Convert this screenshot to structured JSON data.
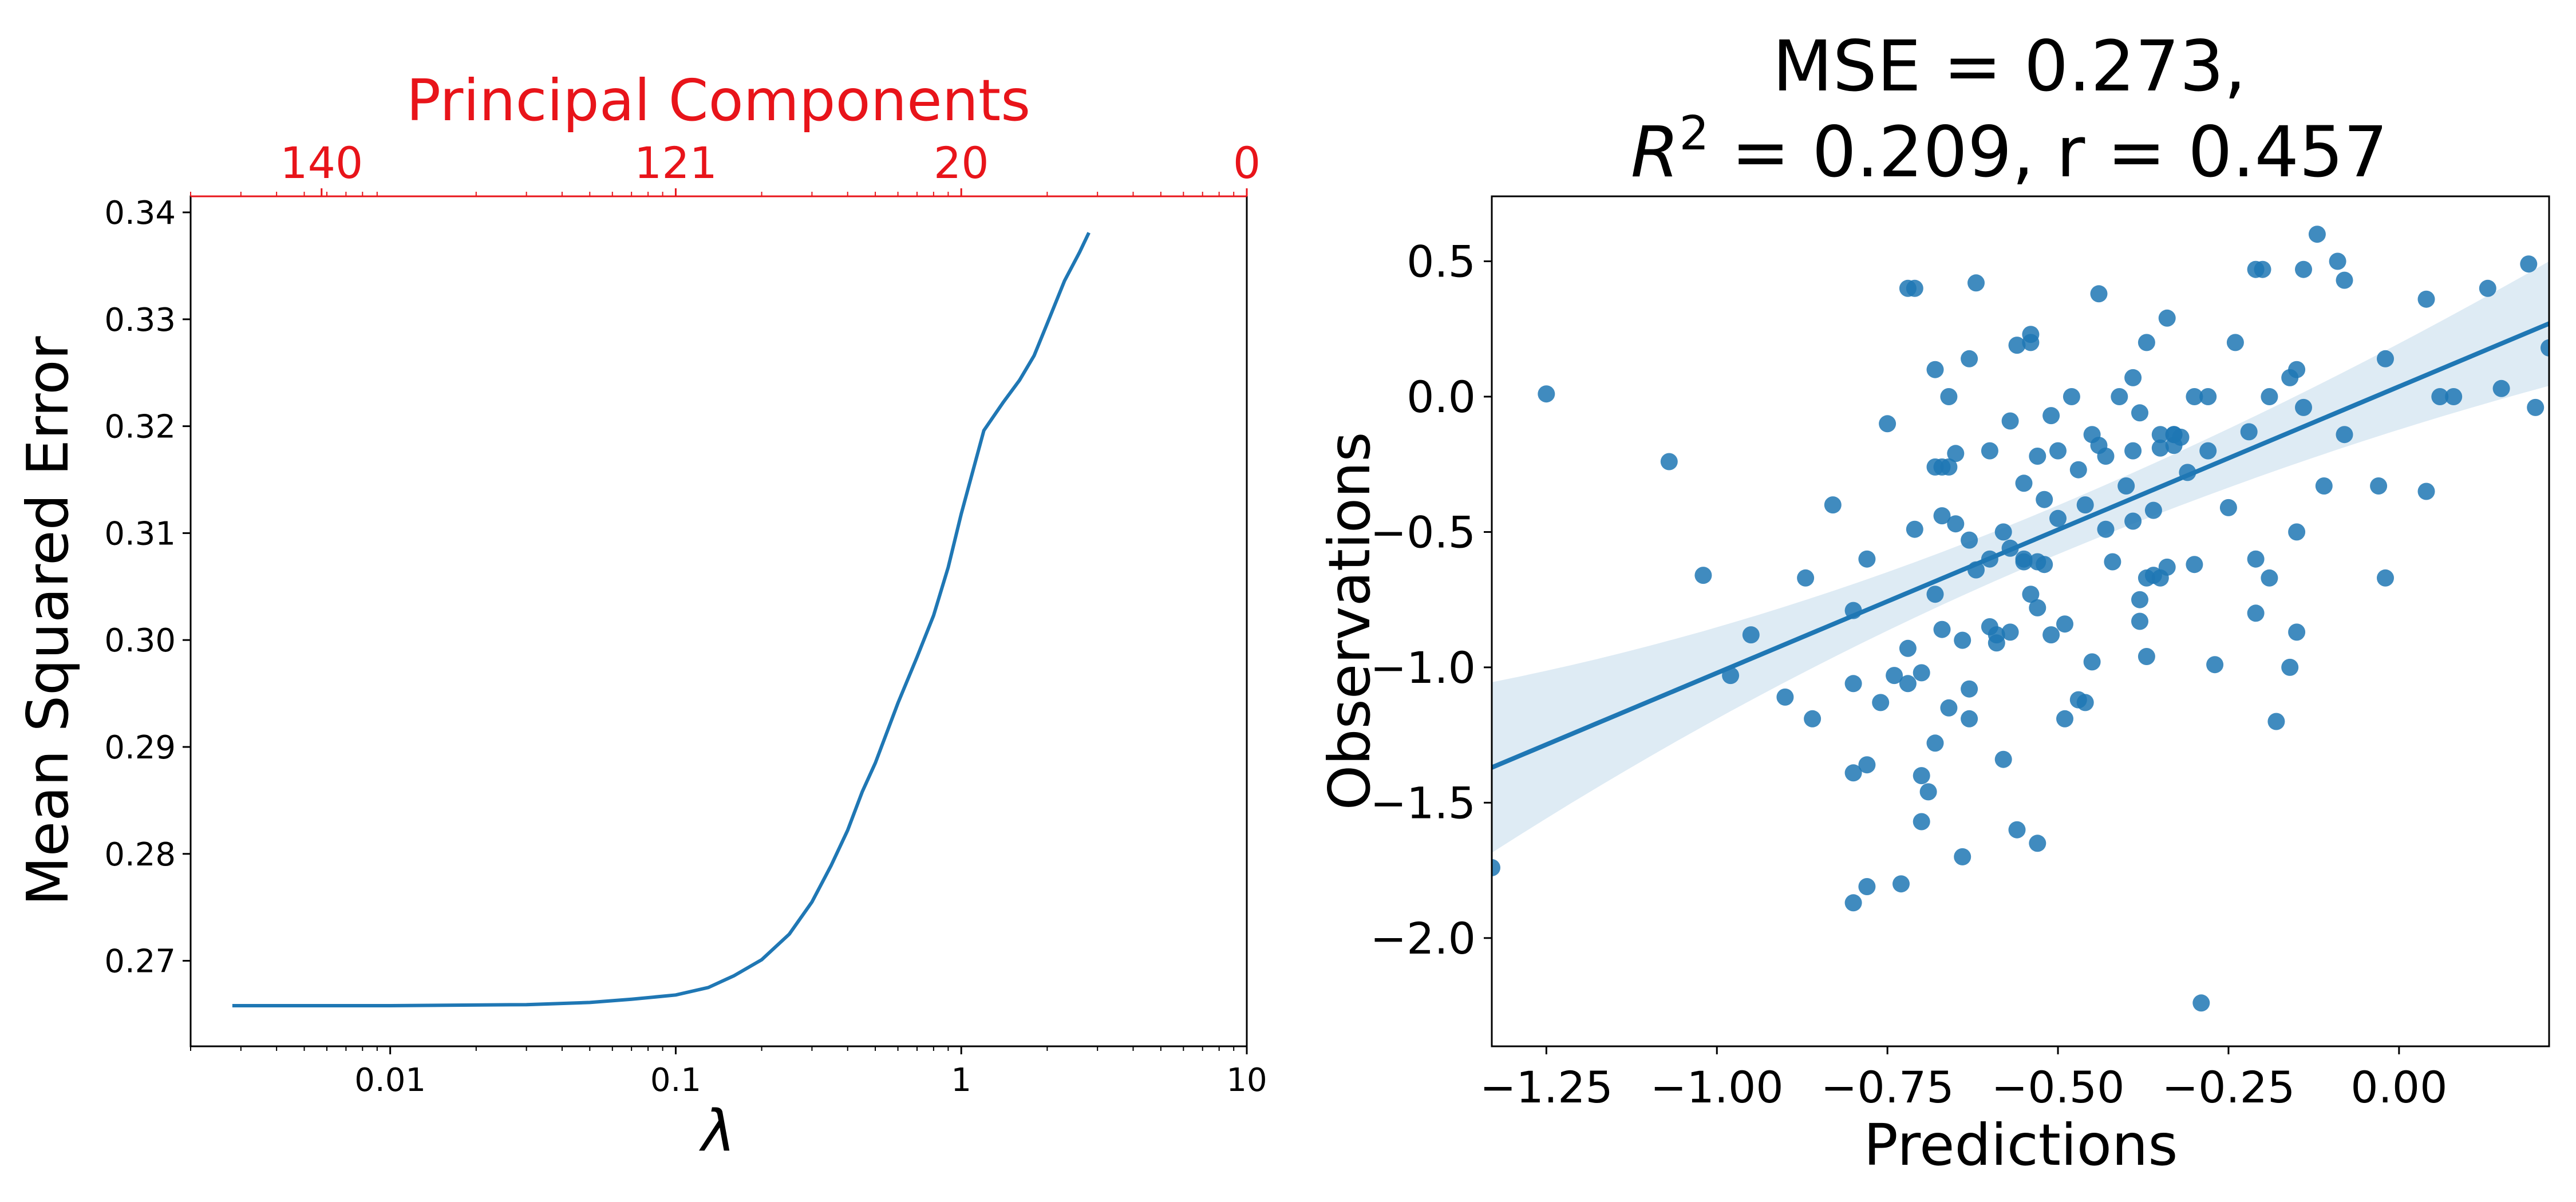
{
  "chart_data": [
    {
      "type": "line",
      "xlabel": "λ",
      "ylabel": "Mean Squared Error",
      "x_scale": "log",
      "xlim": [
        0.002,
        10
      ],
      "ylim": [
        0.262,
        0.3415
      ],
      "xticks": [
        0.01,
        0.1,
        1,
        10
      ],
      "xtick_labels": [
        "0.01",
        "0.1",
        "1",
        "10"
      ],
      "yticks": [
        0.27,
        0.28,
        0.29,
        0.3,
        0.31,
        0.32,
        0.33,
        0.34
      ],
      "ytick_labels": [
        "0.27",
        "0.28",
        "0.29",
        "0.30",
        "0.31",
        "0.32",
        "0.33",
        "0.34"
      ],
      "grid": false,
      "series": [
        {
          "color": "#1f77b4",
          "x": [
            0.0028,
            0.01,
            0.03,
            0.05,
            0.07,
            0.1,
            0.13,
            0.16,
            0.2,
            0.25,
            0.3,
            0.35,
            0.4,
            0.45,
            0.5,
            0.6,
            0.7,
            0.8,
            0.9,
            1.0,
            1.2,
            1.4,
            1.6,
            1.8,
            2.0,
            2.3,
            2.6,
            2.8
          ],
          "y": [
            0.2658,
            0.2658,
            0.2659,
            0.2661,
            0.2664,
            0.2668,
            0.2675,
            0.2686,
            0.2701,
            0.2725,
            0.2755,
            0.2789,
            0.2822,
            0.2858,
            0.2885,
            0.2941,
            0.2984,
            0.3023,
            0.3068,
            0.3118,
            0.3196,
            0.3222,
            0.3243,
            0.3266,
            0.3296,
            0.3336,
            0.3363,
            0.3381
          ]
        }
      ],
      "top_axis": {
        "label": "Principal Components",
        "color": "#e8141a",
        "ticks_at_lambda": [
          0.00575,
          0.1,
          1.0,
          10
        ],
        "tick_labels": [
          "140",
          "121",
          "20",
          "0"
        ]
      }
    },
    {
      "type": "scatter",
      "title_line1": "MSE = 0.273,",
      "title_line2_base": "R",
      "title_line2_sup": "2",
      "title_line2_rest": " = 0.209, r = 0.457",
      "xlabel": "Predictions",
      "ylabel": "Observations",
      "xlim": [
        -1.33,
        0.22
      ],
      "ylim": [
        -2.4,
        0.74
      ],
      "xticks": [
        -1.25,
        -1.0,
        -0.75,
        -0.5,
        -0.25,
        0.0
      ],
      "xtick_labels": [
        "−1.25",
        "−1.00",
        "−0.75",
        "−0.50",
        "−0.25",
        "0.00"
      ],
      "yticks": [
        -2.0,
        -1.5,
        -1.0,
        -0.5,
        0.0,
        0.5
      ],
      "ytick_labels": [
        "−2.0",
        "−1.5",
        "−1.0",
        "−0.5",
        "0.0",
        "0.5"
      ],
      "grid": false,
      "point_color": "#1f77b4",
      "regression": {
        "x": [
          -1.33,
          0.22
        ],
        "y": [
          -1.37,
          0.27
        ],
        "ci_lower": [
          -1.69,
          0.06
        ],
        "ci_upper": [
          -1.06,
          0.52
        ],
        "color": "#1f77b4"
      },
      "points": [
        [
          -1.33,
          -1.74
        ],
        [
          -1.25,
          0.01
        ],
        [
          -1.07,
          -0.24
        ],
        [
          -1.02,
          -0.66
        ],
        [
          -0.98,
          -1.03
        ],
        [
          -0.95,
          -0.88
        ],
        [
          -0.9,
          -1.11
        ],
        [
          -0.87,
          -0.67
        ],
        [
          -0.86,
          -1.19
        ],
        [
          -0.83,
          -0.4
        ],
        [
          -0.8,
          -0.79
        ],
        [
          -0.8,
          -1.06
        ],
        [
          -0.8,
          -1.39
        ],
        [
          -0.8,
          -1.87
        ],
        [
          -0.78,
          -0.6
        ],
        [
          -0.78,
          -1.36
        ],
        [
          -0.78,
          -1.81
        ],
        [
          -0.76,
          -1.13
        ],
        [
          -0.75,
          -0.1
        ],
        [
          -0.74,
          -1.03
        ],
        [
          -0.73,
          -1.8
        ],
        [
          -0.72,
          -0.93
        ],
        [
          -0.72,
          -1.06
        ],
        [
          -0.72,
          0.4
        ],
        [
          -0.71,
          -0.49
        ],
        [
          -0.7,
          -1.4
        ],
        [
          -0.7,
          -1.57
        ],
        [
          -0.7,
          -1.02
        ],
        [
          -0.69,
          -1.46
        ],
        [
          -0.68,
          -0.73
        ],
        [
          -0.68,
          0.1
        ],
        [
          -0.68,
          -1.28
        ],
        [
          -0.67,
          -0.26
        ],
        [
          -0.67,
          -0.44
        ],
        [
          -0.67,
          -0.86
        ],
        [
          -0.66,
          -1.15
        ],
        [
          -0.66,
          0.0
        ],
        [
          -0.66,
          -0.26
        ],
        [
          -0.65,
          -0.47
        ],
        [
          -0.65,
          -0.21
        ],
        [
          -0.64,
          -0.9
        ],
        [
          -0.64,
          -1.7
        ],
        [
          -0.63,
          0.14
        ],
        [
          -0.63,
          -0.53
        ],
        [
          -0.63,
          -1.19
        ],
        [
          -0.63,
          -1.08
        ],
        [
          -0.62,
          0.42
        ],
        [
          -0.62,
          -0.64
        ],
        [
          -0.6,
          -0.2
        ],
        [
          -0.6,
          -0.6
        ],
        [
          -0.6,
          -0.85
        ],
        [
          -0.59,
          -0.88
        ],
        [
          -0.59,
          -0.91
        ],
        [
          -0.58,
          -1.34
        ],
        [
          -0.58,
          -0.5
        ],
        [
          -0.57,
          -0.56
        ],
        [
          -0.57,
          -0.09
        ],
        [
          -0.57,
          -0.87
        ],
        [
          -0.56,
          0.19
        ],
        [
          -0.56,
          -1.6
        ],
        [
          -0.55,
          -0.61
        ],
        [
          -0.55,
          -0.32
        ],
        [
          -0.55,
          -0.6
        ],
        [
          -0.54,
          0.2
        ],
        [
          -0.54,
          -0.73
        ],
        [
          -0.54,
          0.23
        ],
        [
          -0.53,
          -0.78
        ],
        [
          -0.53,
          -0.61
        ],
        [
          -0.53,
          -1.65
        ],
        [
          -0.53,
          -0.22
        ],
        [
          -0.52,
          -0.62
        ],
        [
          -0.52,
          -0.38
        ],
        [
          -0.51,
          -0.88
        ],
        [
          -0.51,
          -0.07
        ],
        [
          -0.5,
          -0.45
        ],
        [
          -0.5,
          -0.2
        ],
        [
          -0.49,
          -0.84
        ],
        [
          -0.49,
          -1.19
        ],
        [
          -0.48,
          0.0
        ],
        [
          -0.47,
          -0.27
        ],
        [
          -0.47,
          -1.12
        ],
        [
          -0.46,
          -0.4
        ],
        [
          -0.46,
          -1.13
        ],
        [
          -0.45,
          -0.98
        ],
        [
          -0.45,
          -0.14
        ],
        [
          -0.44,
          -0.18
        ],
        [
          -0.44,
          0.38
        ],
        [
          -0.43,
          -0.49
        ],
        [
          -0.43,
          -0.22
        ],
        [
          -0.42,
          -0.61
        ],
        [
          -0.41,
          0.0
        ],
        [
          -0.4,
          -0.33
        ],
        [
          -0.39,
          -0.46
        ],
        [
          -0.39,
          -0.2
        ],
        [
          -0.39,
          0.07
        ],
        [
          -0.38,
          -0.75
        ],
        [
          -0.38,
          -0.83
        ],
        [
          -0.38,
          -0.06
        ],
        [
          -0.37,
          -0.67
        ],
        [
          -0.37,
          -0.96
        ],
        [
          -0.37,
          0.2
        ],
        [
          -0.36,
          -0.66
        ],
        [
          -0.36,
          -0.42
        ],
        [
          -0.35,
          -0.19
        ],
        [
          -0.35,
          -0.14
        ],
        [
          -0.35,
          -0.67
        ],
        [
          -0.34,
          -0.63
        ],
        [
          -0.34,
          0.29
        ],
        [
          -0.33,
          -0.14
        ],
        [
          -0.33,
          -0.14
        ],
        [
          -0.33,
          -0.18
        ],
        [
          -0.32,
          -0.15
        ],
        [
          -0.31,
          -0.28
        ],
        [
          -0.3,
          -0.62
        ],
        [
          -0.3,
          0.0
        ],
        [
          -0.29,
          -2.24
        ],
        [
          -0.28,
          0.0
        ],
        [
          -0.28,
          -0.2
        ],
        [
          -0.27,
          -0.99
        ],
        [
          -0.25,
          -0.41
        ],
        [
          -0.24,
          0.2
        ],
        [
          -0.22,
          -0.13
        ],
        [
          -0.21,
          0.47
        ],
        [
          -0.21,
          -0.8
        ],
        [
          -0.21,
          -0.6
        ],
        [
          -0.2,
          0.47
        ],
        [
          -0.19,
          0.0
        ],
        [
          -0.19,
          -0.67
        ],
        [
          -0.18,
          -1.2
        ],
        [
          -0.16,
          0.07
        ],
        [
          -0.16,
          -1.0
        ],
        [
          -0.15,
          -0.87
        ],
        [
          -0.15,
          0.1
        ],
        [
          -0.15,
          -0.5
        ],
        [
          -0.14,
          0.47
        ],
        [
          -0.14,
          -0.04
        ],
        [
          -0.12,
          0.6
        ],
        [
          -0.11,
          -0.33
        ],
        [
          -0.09,
          0.5
        ],
        [
          -0.08,
          0.43
        ],
        [
          -0.08,
          -0.14
        ],
        [
          -0.03,
          -0.33
        ],
        [
          -0.02,
          0.14
        ],
        [
          0.04,
          0.36
        ],
        [
          0.04,
          -0.35
        ],
        [
          0.06,
          0.0
        ],
        [
          0.08,
          0.0
        ],
        [
          0.13,
          0.4
        ],
        [
          0.15,
          0.03
        ],
        [
          0.19,
          0.49
        ],
        [
          0.2,
          -0.04
        ],
        [
          0.22,
          0.18
        ],
        [
          -0.02,
          -0.67
        ],
        [
          -0.71,
          0.4
        ],
        [
          -0.68,
          -0.26
        ]
      ]
    }
  ]
}
